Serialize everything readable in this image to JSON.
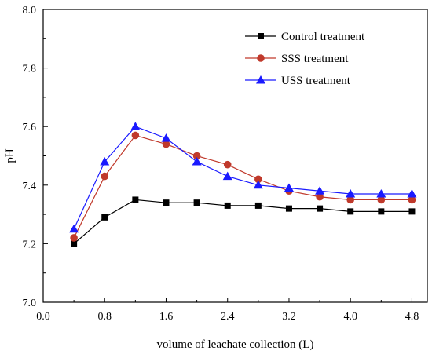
{
  "chart_data": {
    "type": "line",
    "xlabel": "volume of leachate collection (L)",
    "ylabel": "pH",
    "xlim": [
      0.0,
      5.0
    ],
    "ylim": [
      7.0,
      8.0
    ],
    "x_ticks": [
      "0.0",
      "0.8",
      "1.6",
      "2.4",
      "3.2",
      "4.0",
      "4.8"
    ],
    "y_ticks": [
      "7.0",
      "7.2",
      "7.4",
      "7.6",
      "7.8",
      "8.0"
    ],
    "legend_position": "top-right",
    "grid": false,
    "x": [
      0.4,
      0.8,
      1.2,
      1.6,
      2.0,
      2.4,
      2.8,
      3.2,
      3.6,
      4.0,
      4.4,
      4.8
    ],
    "series": [
      {
        "name": "Control treatment",
        "color": "#000000",
        "marker": "square",
        "values": [
          7.2,
          7.29,
          7.35,
          7.34,
          7.34,
          7.33,
          7.33,
          7.32,
          7.32,
          7.31,
          7.31,
          7.31
        ]
      },
      {
        "name": "SSS treatment",
        "color": "#c0392b",
        "marker": "circle",
        "values": [
          7.22,
          7.43,
          7.57,
          7.54,
          7.5,
          7.47,
          7.42,
          7.38,
          7.36,
          7.35,
          7.35,
          7.35
        ]
      },
      {
        "name": "USS treatment",
        "color": "#1a1aff",
        "marker": "triangle",
        "values": [
          7.25,
          7.48,
          7.6,
          7.56,
          7.48,
          7.43,
          7.4,
          7.39,
          7.38,
          7.37,
          7.37,
          7.37
        ]
      }
    ]
  }
}
